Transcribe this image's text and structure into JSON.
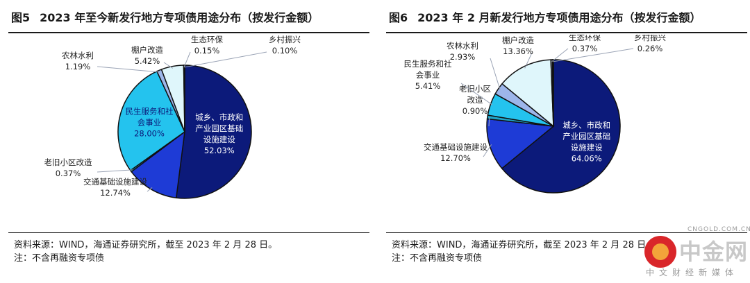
{
  "panels": [
    {
      "fig_no": "图5",
      "title": "2023 年至今新发行地方专项债用途分布（按发行金额）",
      "source": "资料来源：WIND，海通证券研究所，截至 2023 年 2 月 28 日。",
      "note": "注：不含再融资专项债"
    },
    {
      "fig_no": "图6",
      "title": "2023 年 2 月新发行地方专项债用途分布（按发行金额）",
      "source": "资料来源：WIND，海通证券研究所，截至 2023 年 2 月 28 日。",
      "note": "注：不含再融资专项债"
    }
  ],
  "chart_data": [
    {
      "type": "pie",
      "slices": [
        {
          "label": "城乡、市政和产业园区基础设施建设",
          "value": 52.03,
          "value_label": "52.03%",
          "color": "#0c1a7a"
        },
        {
          "label": "交通基础设施建设",
          "value": 12.74,
          "value_label": "12.74%",
          "color": "#1e3bd6"
        },
        {
          "label": "老旧小区改造",
          "value": 0.37,
          "value_label": "0.37%",
          "color": "#1fa6c9"
        },
        {
          "label": "民生服务和社会事业",
          "value": 28.0,
          "value_label": "28.00%",
          "color": "#24c3ee"
        },
        {
          "label": "农林水利",
          "value": 1.19,
          "value_label": "1.19%",
          "color": "#9db6ea"
        },
        {
          "label": "棚户改造",
          "value": 5.42,
          "value_label": "5.42%",
          "color": "#dff6fb"
        },
        {
          "label": "生态环保",
          "value": 0.15,
          "value_label": "0.15%",
          "color": "#aab2c8"
        },
        {
          "label": "乡村振兴",
          "value": 0.1,
          "value_label": "0.10%",
          "color": "#111111"
        }
      ]
    },
    {
      "type": "pie",
      "slices": [
        {
          "label": "城乡、市政和产业园区基础设施建设",
          "value": 64.06,
          "value_label": "64.06%",
          "color": "#0c1a7a"
        },
        {
          "label": "交通基础设施建设",
          "value": 12.7,
          "value_label": "12.70%",
          "color": "#1e3bd6"
        },
        {
          "label": "老旧小区改造",
          "value": 0.9,
          "value_label": "0.90%",
          "color": "#1fa6c9"
        },
        {
          "label": "民生服务和社会事业",
          "value": 5.41,
          "value_label": "5.41%",
          "color": "#24c3ee"
        },
        {
          "label": "农林水利",
          "value": 2.93,
          "value_label": "2.93%",
          "color": "#9db6ea"
        },
        {
          "label": "棚户改造",
          "value": 13.36,
          "value_label": "13.36%",
          "color": "#dff6fb"
        },
        {
          "label": "生态环保",
          "value": 0.37,
          "value_label": "0.37%",
          "color": "#aab2c8"
        },
        {
          "label": "乡村振兴",
          "value": 0.26,
          "value_label": "0.26%",
          "color": "#111111"
        }
      ]
    }
  ],
  "watermark": {
    "name": "中金网",
    "domain": "CNGOLD.COM.CN",
    "tagline": "中文财经新媒体"
  }
}
